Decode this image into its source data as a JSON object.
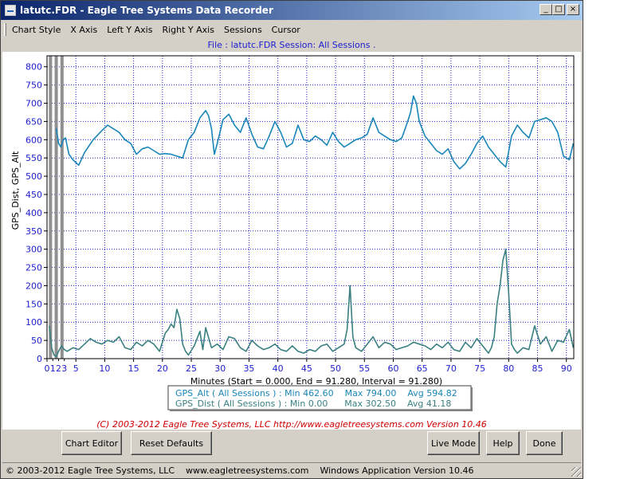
{
  "window": {
    "title": "latutc.FDR - Eagle Tree Systems Data Recorder",
    "minimize_glyph": "_",
    "maximize_glyph": "□",
    "close_glyph": "×"
  },
  "menu": [
    "Chart Style",
    "X Axis",
    "Left Y Axis",
    "Right Y Axis",
    "Sessions",
    "Cursor"
  ],
  "file_line": "File : latutc.FDR    Session: All Sessions  .",
  "chart_data": {
    "type": "line",
    "xlabel": "Minutes (Start = 0.000,  End = 91.280,  Interval =  91.280)",
    "ylabel": "GPS_Dist, GPS_Alt",
    "xlim": [
      0,
      91.28
    ],
    "ylim": [
      0,
      830
    ],
    "x_ticks": [
      0,
      5,
      10,
      15,
      20,
      25,
      30,
      35,
      40,
      45,
      50,
      55,
      60,
      65,
      70,
      75,
      80,
      85,
      90
    ],
    "x_minor_ticks": [
      1,
      2,
      3
    ],
    "y_ticks": [
      0,
      50,
      100,
      150,
      200,
      250,
      300,
      350,
      400,
      450,
      500,
      550,
      600,
      650,
      700,
      750,
      800
    ],
    "grid": true,
    "session_markers": [
      0.6,
      1.6,
      2.6
    ],
    "series": [
      {
        "name": "GPS_Alt",
        "color": "#1a86b8",
        "x": [
          1.6,
          2.0,
          2.4,
          2.8,
          3.2,
          3.8,
          4.5,
          5.5,
          6.5,
          8.0,
          9.5,
          10.5,
          11.5,
          12.5,
          13.5,
          14.5,
          15.5,
          16.5,
          17.5,
          18.5,
          19.5,
          20.5,
          21.5,
          22.5,
          23.5,
          24.5,
          25.5,
          26.5,
          27.5,
          28.0,
          28.5,
          29.0,
          29.5,
          30.5,
          31.5,
          32.5,
          33.5,
          34.5,
          35.5,
          36.5,
          37.5,
          38.5,
          39.5,
          40.5,
          41.5,
          42.5,
          43.5,
          44.5,
          45.5,
          46.5,
          47.5,
          48.5,
          49.5,
          50.5,
          51.5,
          52.5,
          53.5,
          54.5,
          55.5,
          56.5,
          57.5,
          58.5,
          59.5,
          60.5,
          61.5,
          62.5,
          63.0,
          63.5,
          64.0,
          64.5,
          65.5,
          66.5,
          67.5,
          68.5,
          69.5,
          70.5,
          71.5,
          72.5,
          73.5,
          74.5,
          75.5,
          76.5,
          77.5,
          78.5,
          79.5,
          80.5,
          81.5,
          82.5,
          83.5,
          84.5,
          85.5,
          86.5,
          87.5,
          88.5,
          89.5,
          90.5,
          91.2
        ],
        "values": [
          632,
          590,
          580,
          600,
          605,
          560,
          545,
          530,
          565,
          600,
          625,
          640,
          630,
          620,
          600,
          590,
          560,
          575,
          580,
          570,
          560,
          562,
          560,
          555,
          550,
          600,
          620,
          660,
          680,
          665,
          630,
          560,
          590,
          655,
          670,
          640,
          620,
          660,
          615,
          580,
          575,
          610,
          650,
          620,
          580,
          590,
          640,
          600,
          595,
          610,
          600,
          585,
          620,
          595,
          580,
          590,
          600,
          605,
          615,
          660,
          620,
          610,
          600,
          595,
          605,
          650,
          675,
          720,
          700,
          650,
          610,
          590,
          570,
          560,
          575,
          540,
          520,
          535,
          560,
          590,
          610,
          580,
          560,
          540,
          525,
          610,
          640,
          620,
          605,
          650,
          655,
          660,
          650,
          620,
          555,
          545,
          590
        ]
      },
      {
        "name": "GPS_Dist",
        "color": "#3a8080",
        "x": [
          0.4,
          0.8,
          1.2,
          1.6,
          2.0,
          2.5,
          3.0,
          3.5,
          4.5,
          5.5,
          6.5,
          7.5,
          8.5,
          9.5,
          10.5,
          11.5,
          12.5,
          13.5,
          14.5,
          15.5,
          16.5,
          17.5,
          18.5,
          19.5,
          20.5,
          21.0,
          21.5,
          22.0,
          22.5,
          23.0,
          23.5,
          24.0,
          24.5,
          25.5,
          26.5,
          27.0,
          27.5,
          28.5,
          29.5,
          30.5,
          31.5,
          32.5,
          33.5,
          34.5,
          35.5,
          36.5,
          37.5,
          38.5,
          39.5,
          40.5,
          41.5,
          42.5,
          43.5,
          44.5,
          45.5,
          46.5,
          47.5,
          48.5,
          49.5,
          50.5,
          51.5,
          52.0,
          52.5,
          53.0,
          53.5,
          54.5,
          55.5,
          56.5,
          57.5,
          58.5,
          59.5,
          60.5,
          61.5,
          62.5,
          63.5,
          64.5,
          65.5,
          66.5,
          67.5,
          68.5,
          69.5,
          70.5,
          71.5,
          72.5,
          73.5,
          74.5,
          75.5,
          76.5,
          77.0,
          77.5,
          78.0,
          78.5,
          79.0,
          79.5,
          80.0,
          80.5,
          81.0,
          81.5,
          82.5,
          83.5,
          84.5,
          85.5,
          86.5,
          87.5,
          88.5,
          89.5,
          90.5,
          91.2
        ],
        "values": [
          90,
          30,
          10,
          5,
          20,
          35,
          25,
          20,
          30,
          25,
          40,
          55,
          45,
          40,
          50,
          45,
          60,
          30,
          25,
          45,
          35,
          50,
          40,
          20,
          70,
          80,
          95,
          85,
          135,
          110,
          40,
          20,
          10,
          35,
          75,
          25,
          85,
          30,
          40,
          25,
          60,
          55,
          30,
          20,
          50,
          35,
          25,
          30,
          40,
          25,
          20,
          35,
          20,
          15,
          25,
          20,
          35,
          40,
          20,
          30,
          40,
          80,
          200,
          60,
          30,
          20,
          40,
          60,
          30,
          45,
          40,
          25,
          30,
          35,
          45,
          40,
          35,
          25,
          40,
          30,
          45,
          25,
          20,
          45,
          30,
          55,
          35,
          15,
          30,
          60,
          150,
          200,
          270,
          300,
          180,
          40,
          25,
          15,
          30,
          25,
          90,
          40,
          60,
          20,
          50,
          45,
          80,
          30
        ]
      }
    ],
    "legend": [
      {
        "series": "GPS_Alt",
        "label": "GPS_Alt ( All Sessions ) : Min 462.60    Max 794.00    Avg 594.82",
        "color": "#1a86b8"
      },
      {
        "series": "GPS_Dist",
        "label": "GPS_Dist ( All Sessions ) : Min 0.00      Max 302.50    Avg 41.18",
        "color": "#3a8080"
      }
    ]
  },
  "copyright_line": "(C) 2003-2012 Eagle Tree Systems, LLC  http://www.eagletreesystems.com  Version 10.46",
  "buttons": {
    "chart_editor": "Chart Editor",
    "reset_defaults": "Reset Defaults",
    "live_mode": "Live Mode",
    "help": "Help",
    "done": "Done"
  },
  "status": {
    "copyright": "© 2003-2012 Eagle Tree Systems, LLC",
    "website": "www.eagletreesystems.com",
    "version": "Windows Application Version 10.46"
  },
  "colors": {
    "plot_border": "#000000",
    "grid": "#2020c0",
    "axis_labels": "#2020d0",
    "session_marker": "#909090"
  }
}
